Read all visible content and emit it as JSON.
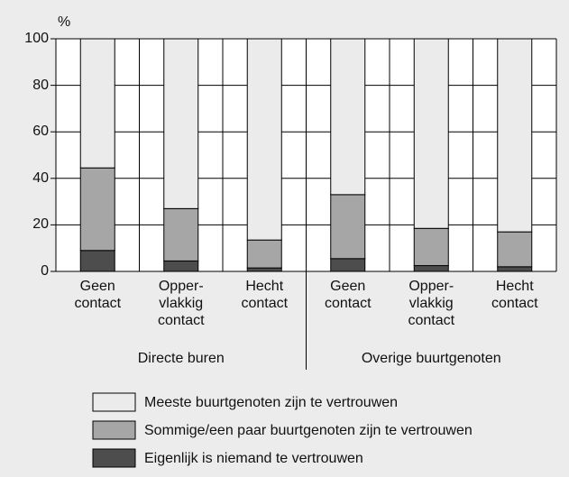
{
  "chart_data": {
    "type": "stacked_bar",
    "y_unit": "%",
    "categories": [
      "Geen\ncontact",
      "Opper-\nvlakkig\ncontact",
      "Hecht\ncontact",
      "Geen\ncontact",
      "Opper-\nvlakkig\ncontact",
      "Hecht\ncontact"
    ],
    "groups": [
      {
        "name": "Directe buren",
        "size": 3
      },
      {
        "name": "Overige buurtgenoten",
        "size": 3
      }
    ],
    "series": [
      {
        "name": "Meeste buurtgenoten zijn te vertrouwen",
        "color": "#ebebeb",
        "values": [
          55.5,
          73,
          86.5,
          67,
          81.5,
          83
        ]
      },
      {
        "name": "Sommige/een paar buurtgenoten zijn te vertrouwen",
        "color": "#a6a6a6",
        "values": [
          35.5,
          22.5,
          12,
          27.5,
          16,
          15
        ]
      },
      {
        "name": "Eigenlijk is niemand te vertrouwen",
        "color": "#4d4d4d",
        "values": [
          9,
          4.5,
          1.5,
          5.5,
          2.5,
          2
        ]
      }
    ],
    "ylim": [
      0,
      100
    ],
    "yticks": [
      0,
      20,
      40,
      60,
      80,
      100
    ],
    "grid": true
  }
}
